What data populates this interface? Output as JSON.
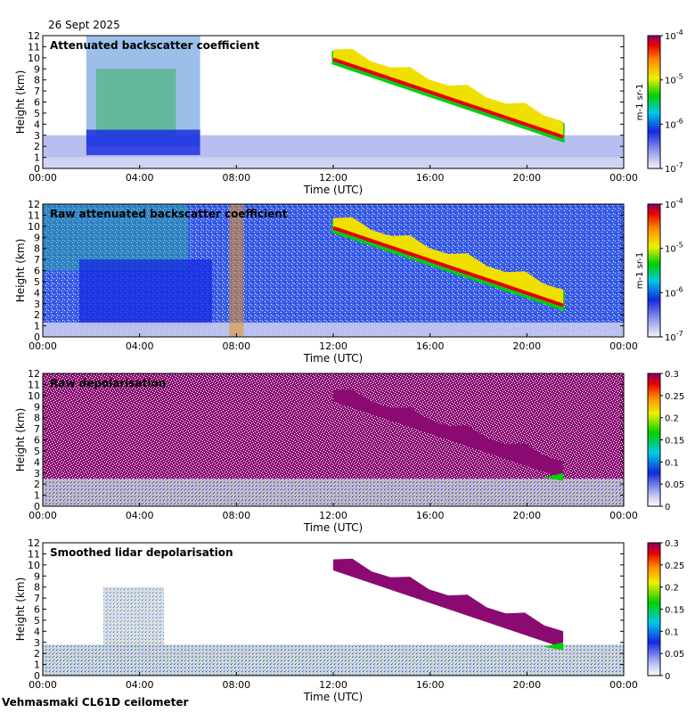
{
  "date": "26 Sept 2025",
  "footer": "Vehmasmaki CL61D ceilometer",
  "chart_data": [
    {
      "type": "heatmap",
      "title": "Attenuated backscatter coefficient",
      "xlabel": "Time (UTC)",
      "ylabel": "Height (km)",
      "xticks": [
        "00:00",
        "04:00",
        "08:00",
        "12:00",
        "16:00",
        "20:00",
        "00:00"
      ],
      "yticks": [
        "0",
        "1",
        "2",
        "3",
        "4",
        "5",
        "6",
        "7",
        "8",
        "9",
        "10",
        "11",
        "12"
      ],
      "ylim": [
        0,
        12
      ],
      "colorbar": {
        "scale": "log",
        "unit": "m-1 sr-1",
        "ticks": [
          "10-7",
          "10-6",
          "10-5",
          "10-4"
        ]
      },
      "features": {
        "cloud_layer": {
          "start_time_h": 12,
          "end_time_h": 21.5,
          "top_km_start": 10.5,
          "top_km_end": 4,
          "base_km_start": 9.5,
          "base_km_end": 2.5
        }
      }
    },
    {
      "type": "heatmap",
      "title": "Raw attenuated backscatter coefficient",
      "xlabel": "Time (UTC)",
      "ylabel": "Height (km)",
      "xticks": [
        "00:00",
        "04:00",
        "08:00",
        "12:00",
        "16:00",
        "20:00",
        "00:00"
      ],
      "yticks": [
        "0",
        "1",
        "2",
        "3",
        "4",
        "5",
        "6",
        "7",
        "8",
        "9",
        "10",
        "11",
        "12"
      ],
      "ylim": [
        0,
        12
      ],
      "colorbar": {
        "scale": "log",
        "unit": "m-1 sr-1",
        "ticks": [
          "10-7",
          "10-6",
          "10-5",
          "10-4"
        ]
      }
    },
    {
      "type": "heatmap",
      "title": "Raw depolarisation",
      "xlabel": "Time (UTC)",
      "ylabel": "Height (km)",
      "xticks": [
        "00:00",
        "04:00",
        "08:00",
        "12:00",
        "16:00",
        "20:00",
        "00:00"
      ],
      "yticks": [
        "0",
        "1",
        "2",
        "3",
        "4",
        "5",
        "6",
        "7",
        "8",
        "9",
        "10",
        "11",
        "12"
      ],
      "ylim": [
        0,
        12
      ],
      "colorbar": {
        "scale": "linear",
        "range": [
          0,
          0.3
        ],
        "ticks": [
          "0",
          "0.05",
          "0.1",
          "0.15",
          "0.2",
          "0.25",
          "0.3"
        ]
      }
    },
    {
      "type": "heatmap",
      "title": "Smoothed lidar depolarisation",
      "xlabel": "Time (UTC)",
      "ylabel": "Height (km)",
      "xticks": [
        "00:00",
        "04:00",
        "08:00",
        "12:00",
        "16:00",
        "20:00",
        "00:00"
      ],
      "yticks": [
        "0",
        "1",
        "2",
        "3",
        "4",
        "5",
        "6",
        "7",
        "8",
        "9",
        "10",
        "11",
        "12"
      ],
      "ylim": [
        0,
        12
      ],
      "colorbar": {
        "scale": "linear",
        "range": [
          0,
          0.3
        ],
        "ticks": [
          "0",
          "0.05",
          "0.1",
          "0.15",
          "0.2",
          "0.25",
          "0.3"
        ]
      }
    }
  ]
}
